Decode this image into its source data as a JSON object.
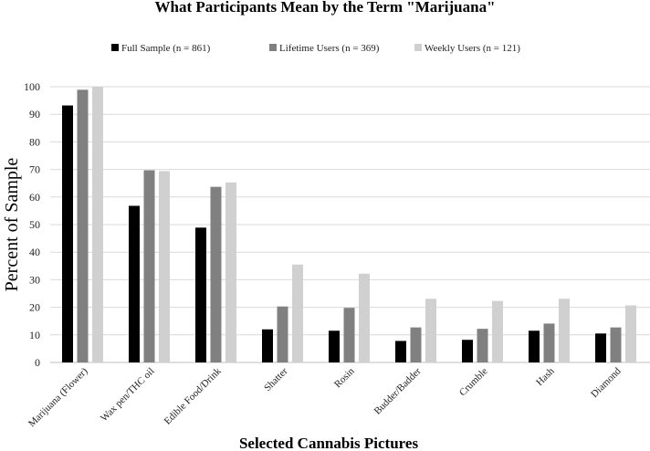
{
  "chart_data": {
    "type": "bar",
    "title": "What Participants Mean by the Term \"Marijuana\"",
    "xlabel": "Selected Cannabis Pictures",
    "ylabel": "Percent of Sample",
    "ylim": [
      0,
      100
    ],
    "yticks": [
      0,
      10,
      20,
      30,
      40,
      50,
      60,
      70,
      80,
      90,
      100
    ],
    "grid": true,
    "legend_position": "top",
    "categories": [
      "Marijuana (Flower)",
      "Wax pen/THC oil",
      "Edible Food/Drink",
      "Shatter",
      "Rosin",
      "Budder/Badder",
      "Crumble",
      "Hash",
      "Diamond"
    ],
    "series": [
      {
        "name": "Full Sample (n = 861)",
        "color": "#000000",
        "values": [
          93.2,
          56.8,
          48.9,
          12.0,
          11.5,
          7.8,
          8.2,
          11.5,
          10.5
        ]
      },
      {
        "name": "Lifetime Users (n = 369)",
        "color": "#808080",
        "values": [
          98.9,
          69.7,
          63.7,
          20.3,
          19.8,
          12.7,
          12.2,
          14.1,
          12.7
        ]
      },
      {
        "name": "Weekly Users (n = 121)",
        "color": "#d0d0d0",
        "values": [
          100,
          69.4,
          65.3,
          35.5,
          32.2,
          23.1,
          22.3,
          23.1,
          20.7
        ]
      }
    ]
  }
}
